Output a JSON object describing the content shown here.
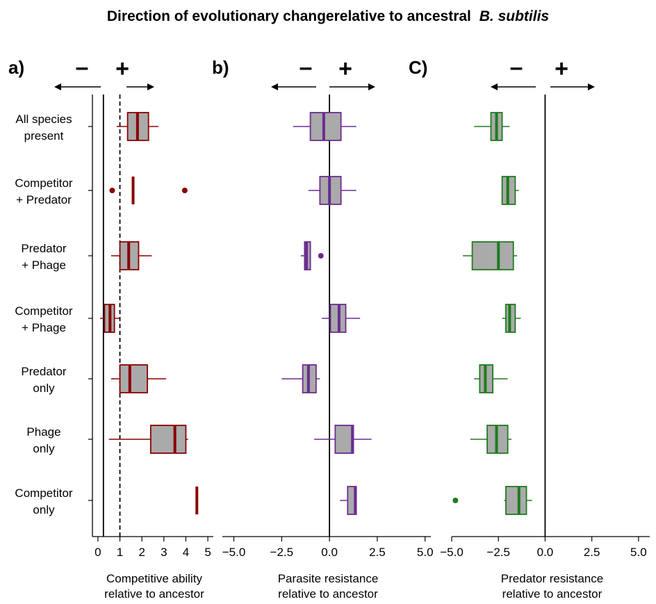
{
  "title": "Direction of evolutionary changerelative to ancestral",
  "title_italic": "B. subtilis",
  "direction_labels": {
    "negative": "–",
    "positive": "+"
  },
  "categories": [
    [
      "All species",
      "present"
    ],
    [
      "Competitor",
      "+ Predator"
    ],
    [
      "Predator",
      "+ Phage"
    ],
    [
      "Competitor",
      "+ Phage"
    ],
    [
      "Predator",
      "only"
    ],
    [
      "Phage",
      "only"
    ],
    [
      "Competitor",
      "only"
    ]
  ],
  "chart_data": [
    {
      "type": "boxplot",
      "panel_label": "a)",
      "xlabel": [
        "Competitive ability",
        "relative to ancestor"
      ],
      "xlim": [
        -0.25,
        5.25
      ],
      "xticks": [
        0,
        1,
        2,
        3,
        4,
        5
      ],
      "tick_labels": [
        "0",
        "1",
        "2",
        "3",
        "4",
        "5"
      ],
      "reference_line": 1,
      "reference_style": "dashed",
      "color": "#8B0000",
      "boxes": [
        {
          "whisker_low": 0.85,
          "q1": 1.35,
          "median": 1.8,
          "q3": 2.3,
          "whisker_high": 2.75,
          "outliers": []
        },
        {
          "whisker_low": 1.55,
          "q1": 1.55,
          "median": 1.6,
          "q3": 1.6,
          "whisker_high": 1.6,
          "outliers": [
            0.65,
            3.95
          ]
        },
        {
          "whisker_low": 0.6,
          "q1": 1.0,
          "median": 1.4,
          "q3": 1.85,
          "whisker_high": 2.45,
          "outliers": []
        },
        {
          "whisker_low": 0.1,
          "q1": 0.3,
          "median": 0.55,
          "q3": 0.75,
          "whisker_high": 1.0,
          "outliers": []
        },
        {
          "whisker_low": 0.6,
          "q1": 1.0,
          "median": 1.45,
          "q3": 2.25,
          "whisker_high": 3.1,
          "outliers": []
        },
        {
          "whisker_low": 0.5,
          "q1": 2.4,
          "median": 3.5,
          "q3": 4.0,
          "whisker_high": 4.1,
          "outliers": []
        },
        {
          "whisker_low": 4.45,
          "q1": 4.45,
          "median": 4.5,
          "q3": 4.5,
          "whisker_high": 4.5,
          "outliers": []
        }
      ]
    },
    {
      "type": "boxplot",
      "panel_label": "b)",
      "xlabel": [
        "Parasite resistance",
        "relative to ancestor"
      ],
      "xlim": [
        -5.6,
        5.3
      ],
      "xticks": [
        -5,
        -2.5,
        0,
        2.5,
        5
      ],
      "tick_labels": [
        "−5.0",
        "−2.5",
        "0.0",
        "2.5",
        "5.0"
      ],
      "reference_line": 0,
      "reference_style": "solid",
      "color": "#6B2C91",
      "boxes": [
        {
          "whisker_low": -1.9,
          "q1": -1.0,
          "median": -0.3,
          "q3": 0.6,
          "whisker_high": 1.4,
          "outliers": []
        },
        {
          "whisker_low": -1.1,
          "q1": -0.5,
          "median": 0.0,
          "q3": 0.6,
          "whisker_high": 1.4,
          "outliers": []
        },
        {
          "whisker_low": -1.5,
          "q1": -1.3,
          "median": -1.2,
          "q3": -1.0,
          "whisker_high": -1.0,
          "outliers": [
            -0.45
          ]
        },
        {
          "whisker_low": -0.4,
          "q1": 0.05,
          "median": 0.5,
          "q3": 0.85,
          "whisker_high": 1.6,
          "outliers": []
        },
        {
          "whisker_low": -2.5,
          "q1": -1.4,
          "median": -1.1,
          "q3": -0.7,
          "whisker_high": -0.5,
          "outliers": []
        },
        {
          "whisker_low": -0.8,
          "q1": 0.3,
          "median": 1.2,
          "q3": 1.25,
          "whisker_high": 2.2,
          "outliers": []
        },
        {
          "whisker_low": 0.55,
          "q1": 0.95,
          "median": 1.35,
          "q3": 1.4,
          "whisker_high": 1.4,
          "outliers": []
        }
      ]
    },
    {
      "type": "boxplot",
      "panel_label": "C)",
      "xlabel": [
        "Predator resistance",
        "relative to ancestor"
      ],
      "xlim": [
        -5.0,
        5.6
      ],
      "xticks": [
        -5,
        -2.5,
        0,
        2.5,
        5
      ],
      "tick_labels": [
        "−5.0",
        "−2.5",
        "0.0",
        "2.5",
        "5.0"
      ],
      "reference_line": 0,
      "reference_style": "solid",
      "color": "#1E7B1E",
      "boxes": [
        {
          "whisker_low": -3.8,
          "q1": -2.9,
          "median": -2.6,
          "q3": -2.3,
          "whisker_high": -1.9,
          "outliers": []
        },
        {
          "whisker_low": -2.3,
          "q1": -2.3,
          "median": -2.0,
          "q3": -1.6,
          "whisker_high": -1.4,
          "outliers": []
        },
        {
          "whisker_low": -4.4,
          "q1": -3.9,
          "median": -2.5,
          "q3": -1.7,
          "whisker_high": -1.5,
          "outliers": []
        },
        {
          "whisker_low": -2.3,
          "q1": -2.1,
          "median": -1.9,
          "q3": -1.6,
          "whisker_high": -1.3,
          "outliers": []
        },
        {
          "whisker_low": -3.8,
          "q1": -3.5,
          "median": -3.2,
          "q3": -2.8,
          "whisker_high": -2.0,
          "outliers": []
        },
        {
          "whisker_low": -4.0,
          "q1": -3.1,
          "median": -2.6,
          "q3": -2.0,
          "whisker_high": -1.8,
          "outliers": []
        },
        {
          "whisker_low": -2.2,
          "q1": -2.1,
          "median": -1.4,
          "q3": -1.0,
          "whisker_high": -0.7,
          "outliers": [
            -4.8
          ]
        }
      ]
    }
  ]
}
